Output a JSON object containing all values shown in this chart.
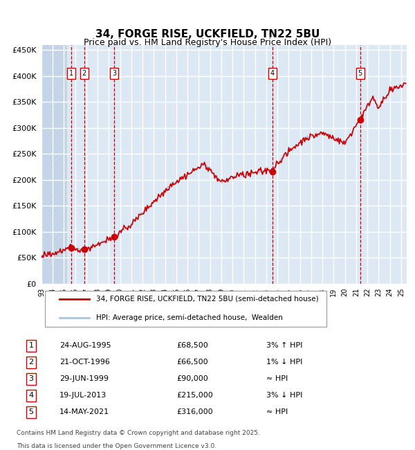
{
  "title": "34, FORGE RISE, UCKFIELD, TN22 5BU",
  "subtitle": "Price paid vs. HM Land Registry's House Price Index (HPI)",
  "legend_line1": "34, FORGE RISE, UCKFIELD, TN22 5BU (semi-detached house)",
  "legend_line2": "HPI: Average price, semi-detached house,  Wealden",
  "footer1": "Contains HM Land Registry data © Crown copyright and database right 2025.",
  "footer2": "This data is licensed under the Open Government Licence v3.0.",
  "transactions": [
    {
      "num": 1,
      "date": "24-AUG-1995",
      "price": 68500,
      "note": "3% ↑ HPI",
      "x": 1995.65
    },
    {
      "num": 2,
      "date": "21-OCT-1996",
      "price": 66500,
      "note": "1% ↓ HPI",
      "x": 1996.8
    },
    {
      "num": 3,
      "date": "29-JUN-1999",
      "price": 90000,
      "note": "≈ HPI",
      "x": 1999.49
    },
    {
      "num": 4,
      "date": "19-JUL-2013",
      "price": 215000,
      "note": "3% ↓ HPI",
      "x": 2013.54
    },
    {
      "num": 5,
      "date": "14-MAY-2021",
      "price": 316000,
      "note": "≈ HPI",
      "x": 2021.36
    }
  ],
  "hpi_color": "#aac4e0",
  "price_color": "#cc0000",
  "dot_color": "#cc0000",
  "vline_color": "#cc0000",
  "bg_color": "#dce9f5",
  "hatch_color": "#c0d0e8",
  "grid_color": "#ffffff",
  "ylim": [
    0,
    460000
  ],
  "yticks": [
    0,
    50000,
    100000,
    150000,
    200000,
    250000,
    300000,
    350000,
    400000,
    450000
  ],
  "xlim_start": 1993.0,
  "xlim_end": 2025.5
}
